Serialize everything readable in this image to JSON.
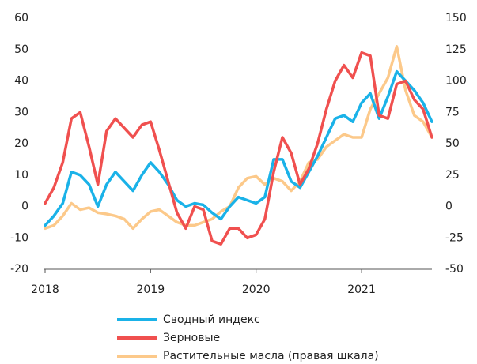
{
  "chart_data": {
    "type": "line",
    "x": [
      2018,
      2018.083,
      2018.167,
      2018.25,
      2018.333,
      2018.417,
      2018.5,
      2018.583,
      2018.667,
      2018.75,
      2018.833,
      2018.917,
      2019,
      2019.083,
      2019.167,
      2019.25,
      2019.333,
      2019.417,
      2019.5,
      2019.583,
      2019.667,
      2019.75,
      2019.833,
      2019.917,
      2020,
      2020.083,
      2020.167,
      2020.25,
      2020.333,
      2020.417,
      2020.5,
      2020.583,
      2020.667,
      2020.75,
      2020.833,
      2020.917,
      2021,
      2021.083,
      2021.167,
      2021.25,
      2021.333,
      2021.417,
      2021.5,
      2021.583,
      2021.667
    ],
    "xlim": [
      2018,
      2021.667
    ],
    "xticks": [
      2018,
      2019,
      2020,
      2021
    ],
    "ylim": [
      -20,
      60
    ],
    "yticks": [
      -20,
      -10,
      0,
      10,
      20,
      30,
      40,
      50,
      60
    ],
    "y2lim": [
      -50,
      150
    ],
    "y2ticks": [
      -50,
      -25,
      0,
      25,
      50,
      75,
      100,
      125,
      150
    ],
    "series": [
      {
        "name": "Сводный индекс",
        "color": "#1ab2e8",
        "values": [
          -6,
          -3,
          1,
          11,
          10,
          7,
          0,
          7,
          11,
          8,
          5,
          10,
          14,
          11,
          7,
          2,
          0,
          1,
          0.5,
          -2,
          -4,
          0,
          3,
          2,
          1,
          3,
          15,
          15,
          8,
          6,
          11,
          16,
          22,
          28,
          29,
          27,
          33,
          36,
          28,
          35,
          43,
          40,
          37,
          33,
          27
        ]
      },
      {
        "name": "Зерновые",
        "color": "#f0504f",
        "values": [
          1,
          6,
          14,
          28,
          30,
          19,
          7,
          24,
          28,
          25,
          22,
          26,
          27,
          18,
          8,
          -2,
          -7,
          0,
          -1,
          -11,
          -12,
          -7,
          -7,
          -10,
          -9,
          -4,
          11,
          22,
          17,
          7,
          12,
          20,
          31,
          40,
          45,
          41,
          49,
          48,
          29,
          28,
          39,
          40,
          34,
          31,
          22
        ]
      },
      {
        "name": "Растительные масла (правая шкала)",
        "color": "#fcc98a",
        "axis": "y2",
        "values": [
          -17.5,
          -15,
          -7.5,
          2.5,
          -2.5,
          -1,
          -5,
          -6,
          -7.5,
          -10,
          -17.5,
          -10,
          -4,
          -2.5,
          -7.5,
          -12.5,
          -15,
          -15,
          -12.5,
          -10,
          -4,
          0,
          15,
          22.5,
          24,
          17.5,
          22.5,
          20,
          12.5,
          20,
          35,
          37.5,
          47.5,
          52.5,
          57.5,
          55,
          55,
          77.5,
          90,
          102.5,
          127.5,
          92.5,
          72.5,
          67.5,
          55
        ]
      }
    ]
  }
}
